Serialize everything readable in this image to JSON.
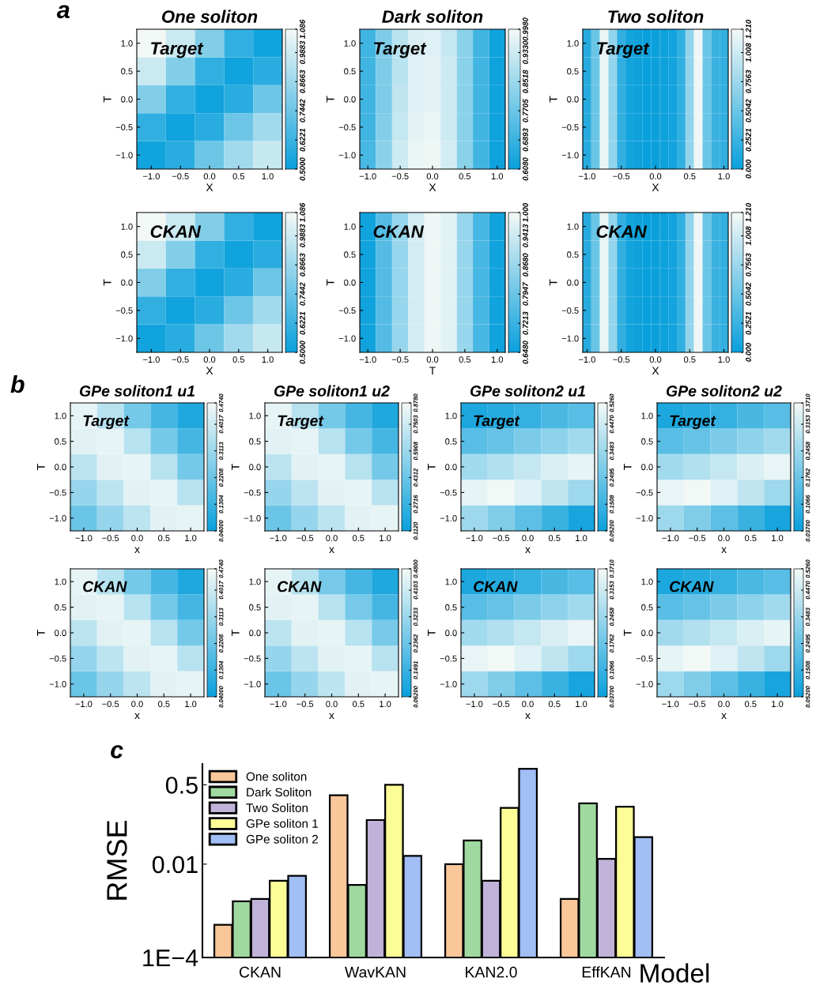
{
  "chart_data": [
    {
      "type": "heatmap",
      "title": "One soliton",
      "xlabel": "X",
      "ylabel": "T",
      "annotations": [
        "a",
        "Target"
      ],
      "categories": [
        "−1.0",
        "−0.5",
        "0.0",
        "0.5",
        "1.0"
      ],
      "y_categories": [
        "1.0",
        "0.5",
        "0.0",
        "−0.5",
        "−1.0"
      ],
      "cells": [
        [
          1.08,
          0.98,
          0.8,
          0.6,
          0.52
        ],
        [
          0.98,
          0.8,
          0.6,
          0.52,
          0.58
        ],
        [
          0.8,
          0.6,
          0.52,
          0.58,
          0.75
        ],
        [
          0.6,
          0.52,
          0.58,
          0.75,
          0.88
        ],
        [
          0.52,
          0.58,
          0.75,
          0.88,
          0.97
        ]
      ],
      "clim": [
        0.5,
        1.086
      ],
      "cticks": [
        {
          "value": 0.5,
          "label": "0.5000"
        },
        {
          "value": 0.6221,
          "label": "0.6221"
        },
        {
          "value": 0.7442,
          "label": "0.7442"
        },
        {
          "value": 0.8663,
          "label": "0.8663"
        },
        {
          "value": 0.9883,
          "label": "0.9883"
        },
        1.086
      ]
    },
    {
      "type": "heatmap",
      "title": "Dark soliton",
      "xlabel": "X",
      "ylabel": "T",
      "annotations": [
        "Target"
      ],
      "categories": [
        "−1.0",
        null,
        "−0.5",
        null,
        "0.0",
        null,
        "0.5",
        null,
        "1.0"
      ],
      "y_categories": [
        "1.0",
        "0.5",
        "0.0",
        "−0.5",
        "−1.0"
      ],
      "cells": [
        [
          0.7,
          0.8,
          0.9,
          0.95,
          0.96,
          0.92,
          0.82,
          0.7,
          0.62
        ],
        [
          0.7,
          0.8,
          0.9,
          0.96,
          0.97,
          0.93,
          0.82,
          0.7,
          0.62
        ],
        [
          0.7,
          0.8,
          0.91,
          0.96,
          0.97,
          0.93,
          0.82,
          0.7,
          0.62
        ],
        [
          0.7,
          0.81,
          0.92,
          0.97,
          0.98,
          0.93,
          0.82,
          0.7,
          0.62
        ],
        [
          0.71,
          0.82,
          0.93,
          0.98,
          0.99,
          0.94,
          0.82,
          0.7,
          0.62
        ]
      ],
      "clim": [
        0.608,
        0.998
      ],
      "cticks": [
        {
          "value": 0.608,
          "label": "0.6080"
        },
        {
          "value": 0.6893,
          "label": "0.6893"
        },
        {
          "value": 0.7705,
          "label": "0.7705"
        },
        {
          "value": 0.8518,
          "label": "0.8518"
        },
        {
          "value": 0.933,
          "label": "0.9330"
        },
        {
          "value": 0.998,
          "label": "0.9980"
        }
      ]
    },
    {
      "type": "heatmap",
      "title": "Two soliton",
      "xlabel": "X",
      "ylabel": "T",
      "annotations": [
        "Target"
      ],
      "categories": [
        "−1.0",
        null,
        null,
        null,
        "−0.5",
        null,
        null,
        null,
        "0.0",
        null,
        null,
        null,
        "0.5",
        null,
        null,
        null,
        "1.0"
      ],
      "y_categories": [
        "1.0",
        "0.5",
        "0.0",
        "−0.5",
        "−1.0"
      ],
      "cells": [
        [
          0.15,
          0.5,
          1.15,
          0.7,
          0.2,
          0.05,
          0.02,
          0.0,
          0.0,
          0.02,
          0.05,
          0.2,
          0.7,
          1.18,
          0.5,
          0.25,
          0.2
        ],
        [
          0.15,
          0.5,
          1.15,
          0.7,
          0.2,
          0.05,
          0.02,
          0.0,
          0.0,
          0.02,
          0.05,
          0.2,
          0.7,
          1.18,
          0.5,
          0.25,
          0.2
        ],
        [
          0.15,
          0.5,
          1.15,
          0.7,
          0.2,
          0.05,
          0.02,
          0.0,
          0.0,
          0.02,
          0.05,
          0.2,
          0.7,
          1.18,
          0.5,
          0.25,
          0.2
        ],
        [
          0.15,
          0.5,
          1.15,
          0.7,
          0.2,
          0.05,
          0.02,
          0.0,
          0.0,
          0.02,
          0.05,
          0.2,
          0.7,
          1.18,
          0.5,
          0.25,
          0.2
        ],
        [
          0.15,
          0.5,
          1.15,
          0.7,
          0.2,
          0.05,
          0.02,
          0.0,
          0.0,
          0.02,
          0.05,
          0.2,
          0.7,
          1.18,
          0.5,
          0.25,
          0.2
        ]
      ],
      "clim": [
        0.0,
        1.21
      ],
      "cticks": [
        {
          "value": 0.0,
          "label": "0.000"
        },
        {
          "value": 0.2521,
          "label": "0.2521"
        },
        {
          "value": 0.5042,
          "label": "0.5042"
        },
        {
          "value": 0.7563,
          "label": "0.7563"
        },
        {
          "value": 1.008,
          "label": "1.008"
        },
        {
          "value": 1.21,
          "label": "1.210"
        }
      ]
    },
    {
      "type": "heatmap",
      "xlabel": "X",
      "ylabel": "T",
      "annotations": [
        "CKAN"
      ],
      "categories": [
        "−1.0",
        "−0.5",
        "0.0",
        "0.5",
        "1.0"
      ],
      "y_categories": [
        "1.0",
        "0.5",
        "0.0",
        "−0.5",
        "−1.0"
      ],
      "cells": [
        [
          1.08,
          0.98,
          0.8,
          0.6,
          0.52
        ],
        [
          0.98,
          0.8,
          0.6,
          0.52,
          0.58
        ],
        [
          0.8,
          0.6,
          0.52,
          0.58,
          0.75
        ],
        [
          0.6,
          0.52,
          0.58,
          0.75,
          0.88
        ],
        [
          0.52,
          0.58,
          0.75,
          0.88,
          0.97
        ]
      ],
      "clim": [
        0.5,
        1.086
      ],
      "cticks": [
        {
          "value": 0.5,
          "label": "0.5000"
        },
        {
          "value": 0.6221,
          "label": "0.6221"
        },
        {
          "value": 0.7442,
          "label": "0.7442"
        },
        {
          "value": 0.8663,
          "label": "0.8663"
        },
        {
          "value": 0.9883,
          "label": "0.9883"
        },
        1.086
      ]
    },
    {
      "type": "heatmap",
      "xlabel": "T",
      "ylabel": "T",
      "annotations": [
        "CKAN"
      ],
      "categories": [
        "−1.0",
        null,
        "−0.5",
        null,
        "0.0",
        null,
        "0.5",
        null,
        "1.0"
      ],
      "y_categories": [
        "1.0",
        "0.5",
        "0.0",
        "−0.5",
        "−1.0"
      ],
      "cells": [
        [
          0.66,
          0.76,
          0.86,
          0.95,
          0.99,
          0.97,
          0.86,
          0.74,
          0.66
        ],
        [
          0.66,
          0.76,
          0.86,
          0.95,
          0.99,
          0.97,
          0.86,
          0.74,
          0.66
        ],
        [
          0.66,
          0.76,
          0.86,
          0.95,
          0.99,
          0.97,
          0.86,
          0.74,
          0.66
        ],
        [
          0.66,
          0.76,
          0.86,
          0.95,
          0.99,
          0.97,
          0.86,
          0.74,
          0.66
        ],
        [
          0.66,
          0.76,
          0.86,
          0.95,
          0.99,
          0.97,
          0.86,
          0.74,
          0.66
        ]
      ],
      "clim": [
        0.648,
        1.0
      ],
      "cticks": [
        {
          "value": 0.648,
          "label": "0.6480"
        },
        {
          "value": 0.7213,
          "label": "0.7213"
        },
        {
          "value": 0.7947,
          "label": "0.7947"
        },
        {
          "value": 0.868,
          "label": "0.8680"
        },
        {
          "value": 0.9413,
          "label": "0.9413"
        },
        {
          "value": 1.0,
          "label": "1.000"
        }
      ]
    },
    {
      "type": "heatmap",
      "xlabel": "X",
      "ylabel": "T",
      "annotations": [
        "CKAN"
      ],
      "categories": [
        "−1.0",
        null,
        null,
        null,
        "−0.5",
        null,
        null,
        null,
        "0.0",
        null,
        null,
        null,
        "0.5",
        null,
        null,
        null,
        "1.0"
      ],
      "y_categories": [
        "1.0",
        "0.5",
        "0.0",
        "−0.5",
        "−1.0"
      ],
      "cells": [
        [
          0.15,
          0.5,
          1.15,
          0.7,
          0.2,
          0.05,
          0.02,
          0.0,
          0.0,
          0.02,
          0.05,
          0.2,
          0.7,
          1.18,
          0.5,
          0.25,
          0.2
        ],
        [
          0.15,
          0.5,
          1.15,
          0.7,
          0.2,
          0.05,
          0.02,
          0.0,
          0.0,
          0.02,
          0.05,
          0.2,
          0.7,
          1.18,
          0.5,
          0.25,
          0.2
        ],
        [
          0.15,
          0.5,
          1.15,
          0.7,
          0.2,
          0.05,
          0.02,
          0.0,
          0.0,
          0.02,
          0.05,
          0.2,
          0.7,
          1.18,
          0.5,
          0.25,
          0.2
        ],
        [
          0.15,
          0.5,
          1.15,
          0.7,
          0.2,
          0.05,
          0.02,
          0.0,
          0.0,
          0.02,
          0.05,
          0.2,
          0.7,
          1.18,
          0.5,
          0.25,
          0.2
        ],
        [
          0.15,
          0.5,
          1.15,
          0.7,
          0.2,
          0.05,
          0.02,
          0.0,
          0.0,
          0.02,
          0.05,
          0.2,
          0.7,
          1.18,
          0.5,
          0.25,
          0.2
        ]
      ],
      "clim": [
        0.0,
        1.21
      ],
      "cticks": [
        {
          "value": 0.0,
          "label": "0.000"
        },
        {
          "value": 0.2521,
          "label": "0.2521"
        },
        {
          "value": 0.5042,
          "label": "0.5042"
        },
        {
          "value": 0.7563,
          "label": "0.7563"
        },
        {
          "value": 1.008,
          "label": "1.008"
        },
        {
          "value": 1.21,
          "label": "1.210"
        }
      ]
    },
    {
      "type": "heatmap",
      "title": "GPe soliton1 u1",
      "xlabel": "x",
      "ylabel": "T",
      "annotations": [
        "b",
        "Target"
      ],
      "categories": [
        "−1.0",
        "−0.5",
        "0.0",
        "0.5",
        "1.0"
      ],
      "y_categories": [
        "1.0",
        "0.5",
        "0.0",
        "−0.5",
        "−1.0"
      ],
      "cells": [
        [
          0.45,
          0.36,
          0.24,
          0.15,
          0.08
        ],
        [
          0.44,
          0.45,
          0.36,
          0.24,
          0.15
        ],
        [
          0.37,
          0.44,
          0.45,
          0.36,
          0.24
        ],
        [
          0.3,
          0.37,
          0.44,
          0.45,
          0.36
        ],
        [
          0.22,
          0.3,
          0.37,
          0.44,
          0.45
        ]
      ],
      "clim": [
        0.04,
        0.474
      ],
      "cticks": [
        {
          "value": 0.04,
          "label": "0.04000"
        },
        {
          "value": 0.1304,
          "label": "0.1304"
        },
        {
          "value": 0.2208,
          "label": "0.2208"
        },
        {
          "value": 0.3113,
          "label": "0.3113"
        },
        {
          "value": 0.4017,
          "label": "0.4017"
        },
        {
          "value": 0.474,
          "label": "0.4740"
        }
      ]
    },
    {
      "type": "heatmap",
      "title": "GPe soliton1 u2",
      "xlabel": "x",
      "ylabel": "T",
      "annotations": [
        "Target"
      ],
      "categories": [
        "−1.0",
        "−0.5",
        "0.0",
        "0.5",
        "1.0"
      ],
      "y_categories": [
        "1.0",
        "0.5",
        "0.0",
        "−0.5",
        "−1.0"
      ],
      "cells": [
        [
          0.836,
          0.677,
          0.465,
          0.306,
          0.183
        ],
        [
          0.818,
          0.836,
          0.677,
          0.465,
          0.306
        ],
        [
          0.694,
          0.818,
          0.836,
          0.677,
          0.465
        ],
        [
          0.571,
          0.694,
          0.818,
          0.836,
          0.677
        ],
        [
          0.43,
          0.571,
          0.694,
          0.818,
          0.836
        ]
      ],
      "clim": [
        0.112,
        0.878
      ],
      "cticks": [
        {
          "value": 0.112,
          "label": "0.1120"
        },
        {
          "value": 0.2716,
          "label": "0.2716"
        },
        {
          "value": 0.4312,
          "label": "0.4312"
        },
        {
          "value": 0.5908,
          "label": "0.5908"
        },
        {
          "value": 0.7503,
          "label": "0.7503"
        },
        {
          "value": 0.878,
          "label": "0.8780"
        }
      ]
    },
    {
      "type": "heatmap",
      "title": "GPe soliton2 u1",
      "xlabel": "x",
      "ylabel": "T",
      "annotations": [
        "Target"
      ],
      "categories": [
        "−1.0",
        "−0.5",
        "0.0",
        "0.5",
        "1.0"
      ],
      "y_categories": [
        "1.0",
        "0.5",
        "0.0",
        "−0.5",
        "−1.0"
      ],
      "cells": [
        [
          0.09,
          0.11,
          0.14,
          0.18,
          0.21
        ],
        [
          0.21,
          0.24,
          0.28,
          0.32,
          0.36
        ],
        [
          0.36,
          0.39,
          0.43,
          0.47,
          0.5
        ],
        [
          0.5,
          0.52,
          0.48,
          0.42,
          0.35
        ],
        [
          0.35,
          0.29,
          0.22,
          0.15,
          0.08
        ]
      ],
      "clim": [
        0.052,
        0.526
      ],
      "cticks": [
        {
          "value": 0.052,
          "label": "0.05200"
        },
        {
          "value": 0.1508,
          "label": "0.1508"
        },
        {
          "value": 0.2495,
          "label": "0.2495"
        },
        {
          "value": 0.3483,
          "label": "0.3483"
        },
        {
          "value": 0.447,
          "label": "0.4470"
        },
        {
          "value": 0.526,
          "label": "0.5260"
        }
      ]
    },
    {
      "type": "heatmap",
      "title": "GPe soliton2 u2",
      "xlabel": "x",
      "ylabel": "T",
      "annotations": [
        "Target"
      ],
      "categories": [
        "−1.0",
        "−0.5",
        "0.0",
        "0.5",
        "1.0"
      ],
      "y_categories": [
        "1.0",
        "0.5",
        "0.0",
        "−0.5",
        "−1.0"
      ],
      "cells": [
        [
          0.064,
          0.078,
          0.099,
          0.127,
          0.148
        ],
        [
          0.148,
          0.17,
          0.198,
          0.226,
          0.254
        ],
        [
          0.254,
          0.275,
          0.303,
          0.332,
          0.353
        ],
        [
          0.353,
          0.367,
          0.339,
          0.296,
          0.247
        ],
        [
          0.247,
          0.205,
          0.155,
          0.106,
          0.057
        ]
      ],
      "clim": [
        0.037,
        0.371
      ],
      "cticks": [
        {
          "value": 0.037,
          "label": "0.03700"
        },
        {
          "value": 0.1066,
          "label": "0.1066"
        },
        {
          "value": 0.1762,
          "label": "0.1762"
        },
        {
          "value": 0.2458,
          "label": "0.2458"
        },
        {
          "value": 0.3153,
          "label": "0.3153"
        },
        {
          "value": 0.371,
          "label": "0.3710"
        }
      ]
    },
    {
      "type": "heatmap",
      "xlabel": "x",
      "ylabel": "T",
      "annotations": [
        "CKAN"
      ],
      "categories": [
        "−1.0",
        "−0.5",
        "0.0",
        "0.5",
        "1.0"
      ],
      "y_categories": [
        "1.0",
        "0.5",
        "0.0",
        "−0.5",
        "−1.0"
      ],
      "cells": [
        [
          0.45,
          0.36,
          0.24,
          0.15,
          0.08
        ],
        [
          0.44,
          0.45,
          0.36,
          0.24,
          0.15
        ],
        [
          0.37,
          0.44,
          0.45,
          0.36,
          0.24
        ],
        [
          0.3,
          0.37,
          0.44,
          0.45,
          0.36
        ],
        [
          0.22,
          0.3,
          0.37,
          0.44,
          0.45
        ]
      ],
      "clim": [
        0.04,
        0.474
      ],
      "cticks": [
        {
          "value": 0.04,
          "label": "0.04000"
        },
        {
          "value": 0.1304,
          "label": "0.1304"
        },
        {
          "value": 0.2208,
          "label": "0.2208"
        },
        {
          "value": 0.3113,
          "label": "0.3113"
        },
        {
          "value": 0.4017,
          "label": "0.4017"
        },
        {
          "value": 0.474,
          "label": "0.4740"
        }
      ]
    },
    {
      "type": "heatmap",
      "xlabel": "x",
      "ylabel": "T",
      "annotations": [
        "CKAN"
      ],
      "categories": [
        "−1.0",
        "−0.5",
        "0.0",
        "0.5",
        "1.0"
      ],
      "y_categories": [
        "1.0",
        "0.5",
        "0.0",
        "−0.5",
        "−1.0"
      ],
      "cells": [
        [
          0.457,
          0.37,
          0.255,
          0.168,
          0.1
        ],
        [
          0.447,
          0.457,
          0.37,
          0.255,
          0.168
        ],
        [
          0.38,
          0.447,
          0.457,
          0.37,
          0.255
        ],
        [
          0.312,
          0.38,
          0.447,
          0.457,
          0.37
        ],
        [
          0.236,
          0.312,
          0.38,
          0.447,
          0.457
        ]
      ],
      "clim": [
        0.062,
        0.48
      ],
      "cticks": [
        {
          "value": 0.062,
          "label": "0.06200"
        },
        {
          "value": 0.1491,
          "label": "0.1491"
        },
        {
          "value": 0.2362,
          "label": "0.2362"
        },
        {
          "value": 0.3233,
          "label": "0.3233"
        },
        {
          "value": 0.4103,
          "label": "0.4103"
        },
        {
          "value": 0.48,
          "label": "0.4800"
        }
      ]
    },
    {
      "type": "heatmap",
      "xlabel": "x",
      "ylabel": "T",
      "annotations": [
        "CKAN"
      ],
      "categories": [
        "−1.0",
        "−0.5",
        "0.0",
        "0.5",
        "1.0"
      ],
      "y_categories": [
        "1.0",
        "0.5",
        "0.0",
        "−0.5",
        "−1.0"
      ],
      "cells": [
        [
          0.064,
          0.078,
          0.099,
          0.127,
          0.148
        ],
        [
          0.148,
          0.17,
          0.198,
          0.226,
          0.254
        ],
        [
          0.254,
          0.275,
          0.303,
          0.332,
          0.353
        ],
        [
          0.353,
          0.367,
          0.339,
          0.296,
          0.247
        ],
        [
          0.247,
          0.205,
          0.155,
          0.106,
          0.057
        ]
      ],
      "clim": [
        0.037,
        0.371
      ],
      "cticks": [
        {
          "value": 0.037,
          "label": "0.03700"
        },
        {
          "value": 0.1066,
          "label": "0.1066"
        },
        {
          "value": 0.1762,
          "label": "0.1762"
        },
        {
          "value": 0.2458,
          "label": "0.2458"
        },
        {
          "value": 0.3153,
          "label": "0.3153"
        },
        {
          "value": 0.371,
          "label": "0.3710"
        }
      ]
    },
    {
      "type": "heatmap",
      "xlabel": "x",
      "ylabel": "T",
      "annotations": [
        "CKAN"
      ],
      "categories": [
        "−1.0",
        "−0.5",
        "0.0",
        "0.5",
        "1.0"
      ],
      "y_categories": [
        "1.0",
        "0.5",
        "0.0",
        "−0.5",
        "−1.0"
      ],
      "cells": [
        [
          0.09,
          0.11,
          0.14,
          0.18,
          0.21
        ],
        [
          0.21,
          0.24,
          0.28,
          0.32,
          0.36
        ],
        [
          0.36,
          0.39,
          0.43,
          0.47,
          0.5
        ],
        [
          0.5,
          0.52,
          0.48,
          0.42,
          0.35
        ],
        [
          0.35,
          0.29,
          0.22,
          0.15,
          0.08
        ]
      ],
      "clim": [
        0.052,
        0.526
      ],
      "cticks": [
        {
          "value": 0.052,
          "label": "0.05200"
        },
        {
          "value": 0.1508,
          "label": "0.1508"
        },
        {
          "value": 0.2495,
          "label": "0.2495"
        },
        {
          "value": 0.3483,
          "label": "0.3483"
        },
        {
          "value": 0.447,
          "label": "0.4470"
        },
        {
          "value": 0.526,
          "label": "0.5260"
        }
      ]
    },
    {
      "type": "bar",
      "xlabel": "Model",
      "ylabel": "RMSE",
      "annotations": [
        "c"
      ],
      "log": true,
      "legend": "top left",
      "categories": [
        "CKAN",
        "WavKAN",
        "KAN2.0",
        "EffKAN"
      ],
      "ylim": [
        0.0001,
        1.4
      ],
      "yticks": [
        {
          "value": 0.0001,
          "label": "1E−4"
        },
        0.01,
        0.5
      ],
      "series": [
        {
          "name": "One soliton",
          "color": "#f9c79a",
          "values": [
            0.0005,
            0.3,
            0.01,
            0.0018
          ]
        },
        {
          "name": "Dark Soliton",
          "color": "#a0d9a0",
          "values": [
            0.0016,
            0.0036,
            0.032,
            0.2
          ]
        },
        {
          "name": "Two Soliton",
          "color": "#c1b2d9",
          "values": [
            0.0018,
            0.088,
            0.0044,
            0.013
          ]
        },
        {
          "name": "GPe soliton 1",
          "color": "#fdfd98",
          "values": [
            0.0044,
            0.5,
            0.16,
            0.17
          ]
        },
        {
          "name": "GPe soliton 2",
          "color": "#a1bef5",
          "values": [
            0.0056,
            0.015,
            1.1,
            0.038
          ]
        }
      ]
    }
  ]
}
